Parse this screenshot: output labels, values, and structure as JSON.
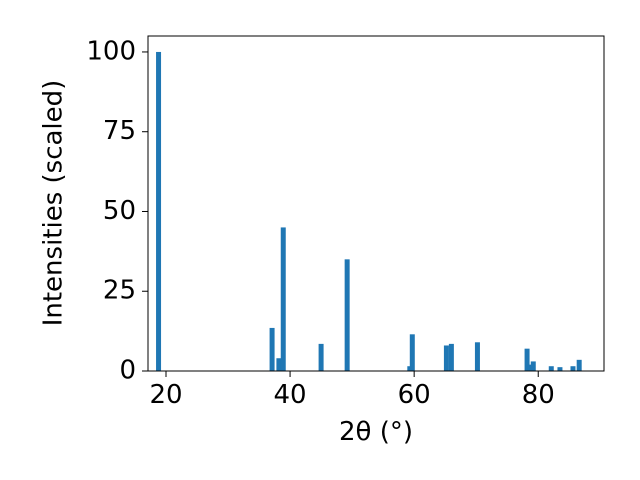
{
  "chart_data": {
    "type": "bar",
    "xlabel": "2θ (°)",
    "ylabel": "Intensities (scaled)",
    "x": [
      18.8,
      37.1,
      38.2,
      38.9,
      45.0,
      49.2,
      59.3,
      59.7,
      65.2,
      66.0,
      70.2,
      78.2,
      78.7,
      79.2,
      82.1,
      83.5,
      85.6,
      86.6
    ],
    "values": [
      100,
      13.5,
      4,
      45,
      8.5,
      35,
      1.5,
      11.5,
      8,
      8.5,
      9,
      7,
      2,
      3,
      1.5,
      1.2,
      1.5,
      3.5
    ],
    "color": "#1f77b4",
    "xlim": [
      17.1,
      90.6
    ],
    "xticks": [
      20,
      40,
      60,
      80
    ],
    "ylim": [
      0,
      105
    ],
    "yticks": [
      0,
      25,
      50,
      75,
      100
    ]
  }
}
